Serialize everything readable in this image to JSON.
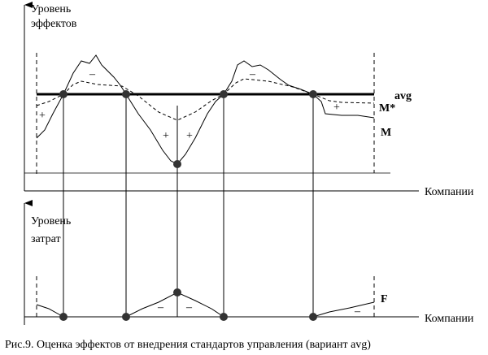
{
  "figure": {
    "top_y_label": [
      "Уровень",
      "эффектов"
    ],
    "top_x_label": "Компании",
    "bottom_y_label": [
      "Уровень",
      "затрат"
    ],
    "bottom_x_label": "Компании",
    "curve_labels": {
      "m": "M",
      "m_star": "M*",
      "avg": "avg",
      "f": "F"
    },
    "signs": [
      "–",
      "+",
      "+",
      "+",
      "–",
      "+",
      "–",
      "–",
      "–"
    ],
    "caption": "Рис.9. Оценка эффектов от внедрения стандартов управления (вариант avg)"
  }
}
